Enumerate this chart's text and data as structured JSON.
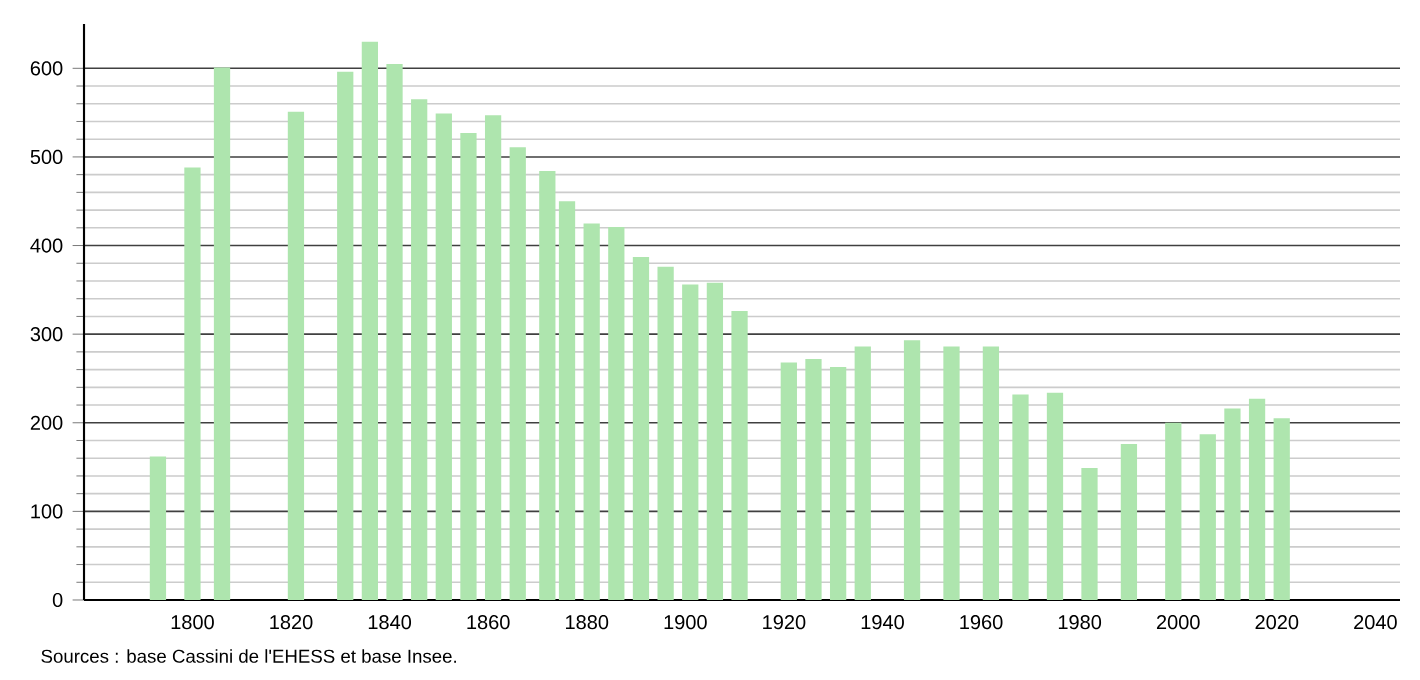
{
  "chart_data": {
    "type": "bar",
    "x": [
      1793,
      1800,
      1806,
      1821,
      1831,
      1836,
      1841,
      1846,
      1851,
      1856,
      1861,
      1866,
      1872,
      1876,
      1881,
      1886,
      1891,
      1896,
      1901,
      1906,
      1911,
      1921,
      1926,
      1931,
      1936,
      1946,
      1954,
      1962,
      1968,
      1975,
      1982,
      1990,
      1999,
      2006,
      2011,
      2016,
      2021
    ],
    "values": [
      162,
      488,
      601,
      551,
      596,
      630,
      605,
      565,
      549,
      527,
      547,
      511,
      484,
      450,
      425,
      421,
      387,
      376,
      356,
      358,
      326,
      268,
      272,
      263,
      286,
      293,
      286,
      286,
      232,
      234,
      149,
      176,
      200,
      187,
      216,
      227,
      205
    ],
    "color": "#aee5ae",
    "xlim": [
      1778,
      2045
    ],
    "ylim": [
      0,
      650
    ],
    "xticks": [
      1800,
      1820,
      1840,
      1860,
      1880,
      1900,
      1920,
      1940,
      1960,
      1980,
      2000,
      2020,
      2040
    ],
    "yticks": [
      0,
      100,
      200,
      300,
      400,
      500,
      600
    ],
    "grid": "y",
    "annotations": [
      "Sources : base Cassini de l'EHESS et base Insee."
    ]
  }
}
